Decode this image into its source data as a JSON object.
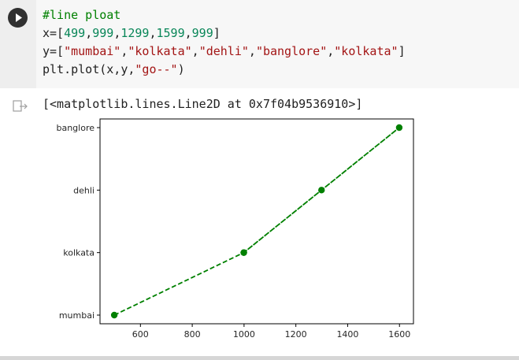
{
  "cell": {
    "code_lines": [
      {
        "parts": [
          {
            "cls": "cm",
            "text": "#line ploat"
          }
        ]
      },
      {
        "parts": [
          {
            "cls": "pl",
            "text": "x=["
          },
          {
            "cls": "num",
            "text": "499"
          },
          {
            "cls": "pl",
            "text": ","
          },
          {
            "cls": "num",
            "text": "999"
          },
          {
            "cls": "pl",
            "text": ","
          },
          {
            "cls": "num",
            "text": "1299"
          },
          {
            "cls": "pl",
            "text": ","
          },
          {
            "cls": "num",
            "text": "1599"
          },
          {
            "cls": "pl",
            "text": ","
          },
          {
            "cls": "num",
            "text": "999"
          },
          {
            "cls": "pl",
            "text": "]"
          }
        ]
      },
      {
        "parts": [
          {
            "cls": "pl",
            "text": "y=["
          },
          {
            "cls": "str",
            "text": "\"mumbai\""
          },
          {
            "cls": "pl",
            "text": ","
          },
          {
            "cls": "str",
            "text": "\"kolkata\""
          },
          {
            "cls": "pl",
            "text": ","
          },
          {
            "cls": "str",
            "text": "\"dehli\""
          },
          {
            "cls": "pl",
            "text": ","
          },
          {
            "cls": "str",
            "text": "\"banglore\""
          },
          {
            "cls": "pl",
            "text": ","
          },
          {
            "cls": "str",
            "text": "\"kolkata\""
          },
          {
            "cls": "pl",
            "text": "]"
          }
        ]
      },
      {
        "parts": [
          {
            "cls": "pl",
            "text": "plt.plot(x,y,"
          },
          {
            "cls": "str",
            "text": "\"go--\""
          },
          {
            "cls": "pl",
            "text": ")"
          }
        ]
      }
    ],
    "output_text": "[<matplotlib.lines.Line2D at 0x7f04b9536910>]"
  },
  "chart_data": {
    "type": "line",
    "categories": [
      "mumbai",
      "kolkata",
      "dehli",
      "banglore"
    ],
    "x": [
      499,
      999,
      1299,
      1599,
      999
    ],
    "y": [
      "mumbai",
      "kolkata",
      "dehli",
      "banglore",
      "kolkata"
    ],
    "xticks": [
      600,
      800,
      1000,
      1200,
      1400,
      1600
    ],
    "xlim": [
      444,
      1654
    ],
    "color": "#008000",
    "linestyle": "dashed",
    "marker": "circle",
    "grid": false
  }
}
